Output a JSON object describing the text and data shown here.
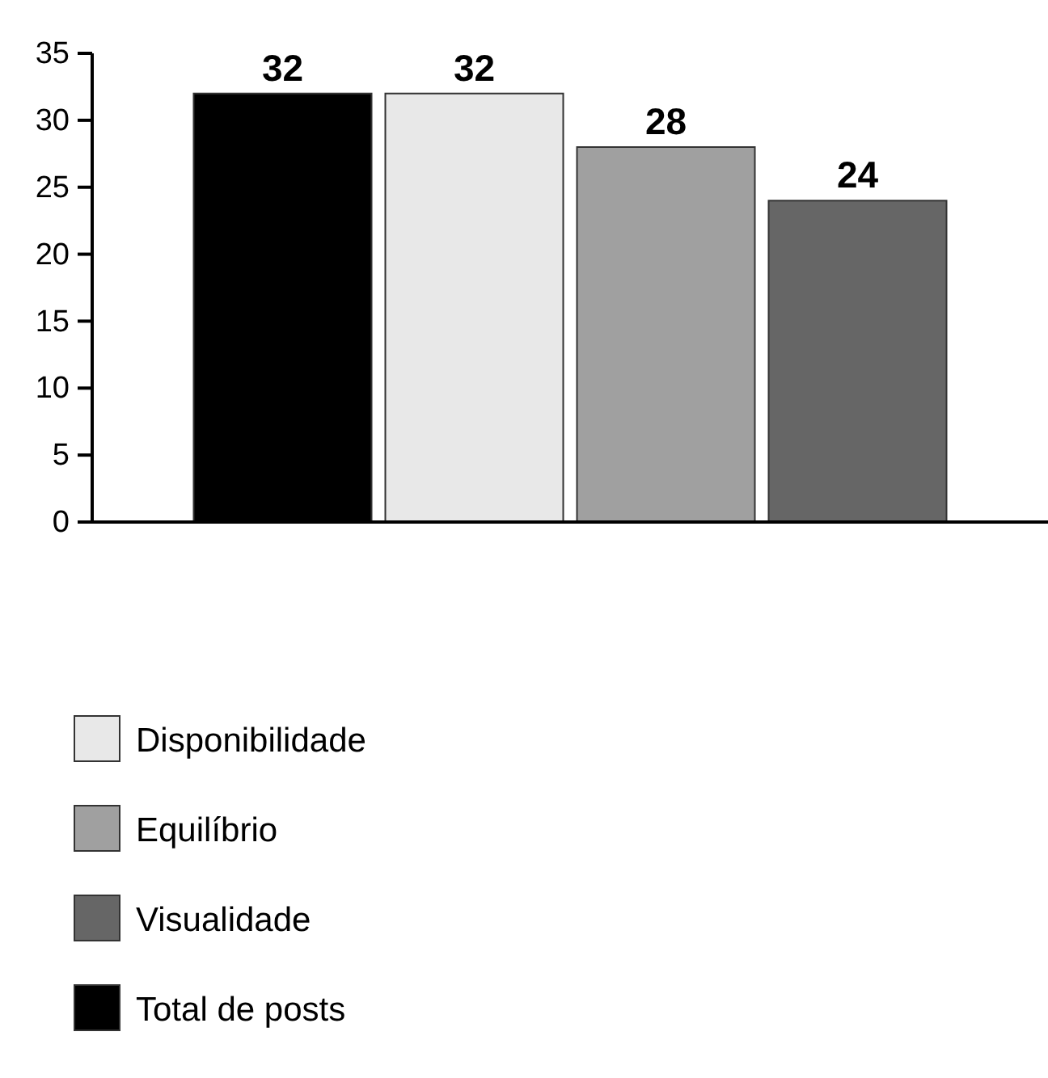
{
  "chart_data": {
    "type": "bar",
    "categories": [
      null
    ],
    "series": [
      {
        "name": "Total de posts",
        "color": "#000000",
        "values": [
          32
        ]
      },
      {
        "name": "Disponibilidade",
        "color": "#e8e8e8",
        "values": [
          32
        ]
      },
      {
        "name": "Equilíbrio",
        "color": "#a0a0a0",
        "values": [
          28
        ]
      },
      {
        "name": "Visualidade",
        "color": "#666666",
        "values": [
          24
        ]
      }
    ],
    "ylim": [
      0,
      35
    ],
    "yticks": [
      0,
      5,
      10,
      15,
      20,
      25,
      30,
      35
    ],
    "grid": false,
    "legend": "bottom",
    "data_labels": true
  }
}
